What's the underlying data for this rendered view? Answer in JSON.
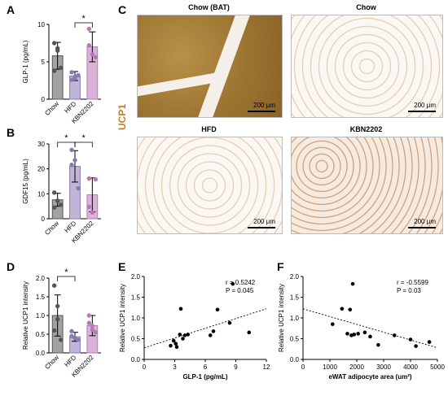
{
  "panels": {
    "A": "A",
    "B": "B",
    "C": "C",
    "D": "D",
    "E": "E",
    "F": "F"
  },
  "colors": {
    "chow": "#555555",
    "hfd": "#8a78b5",
    "kbn": "#b878b5",
    "ucp1_label": "#c87a2a",
    "bat_tissue": "#a07b35",
    "beige_tissue": "#e2c8a8"
  },
  "micrographs": {
    "side_label": "UCP1",
    "scale_label": "200 μm",
    "tiles": [
      {
        "title": "Chow (BAT)",
        "style": "bat"
      },
      {
        "title": "Chow",
        "style": "white"
      },
      {
        "title": "HFD",
        "style": "white"
      },
      {
        "title": "KBN2202",
        "style": "beige"
      }
    ]
  },
  "chart_data": [
    {
      "panel": "A",
      "type": "bar",
      "ylabel": "GLP-1 (pg/mL)",
      "categories": [
        "Chow",
        "HFD",
        "KBN2202"
      ],
      "values": [
        5.8,
        3.1,
        7.0
      ],
      "sd": [
        1.8,
        0.6,
        2.0
      ],
      "points": [
        [
          7.5,
          6.5,
          4.2,
          3.8,
          6.8
        ],
        [
          3.6,
          2.8,
          3.2,
          2.6,
          3.0
        ],
        [
          9.4,
          6.0,
          5.6,
          7.2
        ]
      ],
      "ylim": [
        0,
        10
      ],
      "yticks": [
        0,
        5,
        10
      ],
      "significance": [
        {
          "from": 1,
          "to": 2,
          "label": "*"
        }
      ]
    },
    {
      "panel": "B",
      "type": "bar",
      "ylabel": "GDF15 (pg/mL)",
      "categories": [
        "Chow",
        "HFD",
        "KBN2202"
      ],
      "values": [
        7.6,
        21.0,
        9.6
      ],
      "sd": [
        2.6,
        6.3,
        6.8
      ],
      "points": [
        [
          10.5,
          7.2,
          5.6,
          4.5
        ],
        [
          27.6,
          23.5,
          12.2,
          21.6
        ],
        [
          16.1,
          2.5,
          15.8,
          4.8
        ]
      ],
      "ylim": [
        0,
        30
      ],
      "yticks": [
        0,
        10,
        20,
        30
      ],
      "significance": [
        {
          "from": 0,
          "to": 1,
          "label": "*"
        },
        {
          "from": 1,
          "to": 2,
          "label": "*"
        }
      ]
    },
    {
      "panel": "D",
      "type": "bar",
      "ylabel": "Relative UCP1 intensity",
      "categories": [
        "Chow",
        "HFD",
        "KBN2202"
      ],
      "values": [
        1.0,
        0.43,
        0.73
      ],
      "sd": [
        0.55,
        0.12,
        0.27
      ],
      "points": [
        [
          1.8,
          0.9,
          0.35,
          0.6,
          1.25
        ],
        [
          0.58,
          0.4,
          0.35,
          0.45,
          0.4
        ],
        [
          1.0,
          0.62,
          0.55,
          0.8,
          0.72
        ]
      ],
      "ylim": [
        0,
        2.0
      ],
      "yticks": [
        0.0,
        0.5,
        1.0,
        1.5,
        2.0
      ],
      "significance": [
        {
          "from": 0,
          "to": 1,
          "label": "*"
        }
      ]
    },
    {
      "panel": "E",
      "type": "scatter",
      "xlabel": "GLP-1 (pg/mL)",
      "ylabel": "Relative UCP1 intensity",
      "xlim": [
        0,
        12
      ],
      "ylim": [
        0.0,
        2.0
      ],
      "xticks": [
        0,
        3,
        6,
        9,
        12
      ],
      "yticks": [
        0.0,
        0.5,
        1.0,
        1.5,
        2.0
      ],
      "x": [
        2.6,
        2.9,
        3.1,
        3.2,
        3.5,
        3.6,
        3.8,
        4.0,
        4.3,
        6.5,
        6.8,
        7.2,
        8.4,
        8.7,
        10.3
      ],
      "y": [
        0.33,
        0.45,
        0.38,
        0.3,
        0.6,
        1.22,
        0.5,
        0.58,
        0.6,
        0.58,
        0.68,
        1.2,
        0.88,
        1.82,
        0.65
      ],
      "trend": {
        "x": [
          0,
          12
        ],
        "y": [
          0.28,
          1.22
        ]
      },
      "annotation": [
        "r = 0.5242",
        "P = 0.045"
      ]
    },
    {
      "panel": "F",
      "type": "scatter",
      "xlabel": "eWAT adipocyte area (um²)",
      "ylabel": "Relative UCP1 intensity",
      "xlim": [
        0,
        5000
      ],
      "ylim": [
        0.0,
        2.0
      ],
      "xticks": [
        0,
        1000,
        2000,
        3000,
        4000,
        5000
      ],
      "yticks": [
        0.0,
        0.5,
        1.0,
        1.5,
        2.0
      ],
      "x": [
        1100,
        1450,
        1650,
        1750,
        1800,
        1850,
        1900,
        2050,
        2300,
        2500,
        2800,
        3400,
        4000,
        4200,
        4700
      ],
      "y": [
        0.85,
        1.22,
        0.62,
        1.2,
        0.58,
        1.82,
        0.6,
        0.62,
        0.65,
        0.55,
        0.35,
        0.58,
        0.48,
        0.32,
        0.42
      ],
      "trend": {
        "x": [
          0,
          5000
        ],
        "y": [
          1.22,
          0.28
        ]
      },
      "annotation": [
        "r = -0.5599",
        "P = 0.03"
      ]
    }
  ]
}
